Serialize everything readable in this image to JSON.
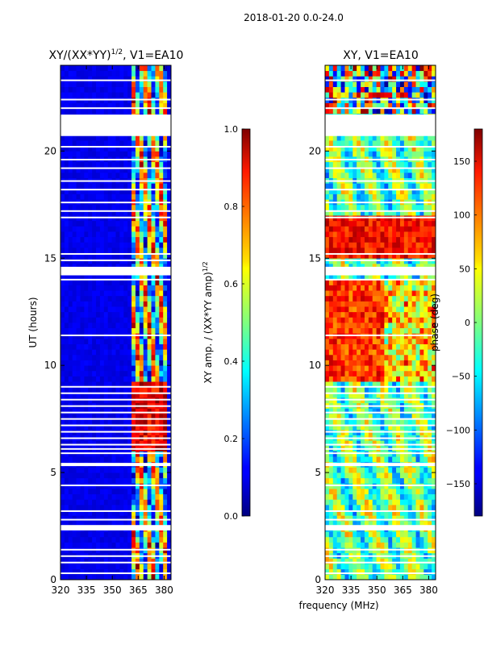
{
  "figure": {
    "suptitle": "2018-01-20 0.0-24.0",
    "shared_xlabel": "frequency (MHz)"
  },
  "chart_data": [
    {
      "type": "heatmap",
      "title": "XY/(XX*YY)",
      "title_exponent": "1/2",
      "title_suffix": ", V1=EA10",
      "xlabel": "",
      "ylabel": "UT (hours)",
      "xlim": [
        320,
        384
      ],
      "ylim": [
        0,
        24
      ],
      "xticks": [
        320,
        335,
        350,
        365,
        380
      ],
      "yticks": [
        0,
        5,
        10,
        15,
        20
      ],
      "colorbar": {
        "label": "XY amp. / (XX*YY amp)",
        "label_exponent": "1/2",
        "range": [
          0.0,
          1.0
        ],
        "ticks": [
          "0.0",
          "0.2",
          "0.4",
          "0.6",
          "0.8",
          "1.0"
        ],
        "colormap": "jet"
      },
      "active_band_mhz": [
        362,
        381
      ],
      "gap_bands_hours": [
        [
          2.3,
          2.55
        ],
        [
          5.3,
          5.45
        ],
        [
          14.2,
          14.6
        ],
        [
          20.7,
          21.7
        ]
      ],
      "flag_line_hours": [
        0.3,
        0.8,
        1.1,
        1.4,
        2.8,
        3.2,
        4.4,
        5.9,
        6.1,
        6.3,
        6.6,
        6.9,
        7.2,
        7.5,
        7.8,
        8.1,
        8.4,
        8.7,
        9.0,
        11.4,
        14.0,
        14.9,
        15.2,
        16.9,
        17.2,
        17.6,
        18.2,
        18.6,
        19.2,
        19.6,
        20.2,
        22.0,
        22.4,
        23.3
      ]
    },
    {
      "type": "heatmap",
      "title": "XY, V1=EA10",
      "xlabel": "frequency (MHz)",
      "ylabel": "",
      "xlim": [
        320,
        384
      ],
      "ylim": [
        0,
        24
      ],
      "xticks": [
        320,
        335,
        350,
        365,
        380
      ],
      "yticks": [
        0,
        5,
        10,
        15,
        20
      ],
      "colorbar": {
        "label": "phase (deg)",
        "range": [
          -180,
          180
        ],
        "ticks": [
          "150",
          "100",
          "50",
          "0",
          "−50",
          "−100",
          "−150"
        ],
        "colormap": "jet"
      },
      "gap_bands_hours": [
        [
          2.3,
          2.55
        ],
        [
          5.3,
          5.45
        ],
        [
          14.2,
          14.6
        ],
        [
          20.7,
          21.7
        ]
      ],
      "flag_line_hours": [
        0.3,
        0.8,
        1.1,
        1.4,
        2.8,
        3.2,
        4.4,
        5.9,
        6.1,
        6.3,
        6.6,
        6.9,
        7.2,
        7.5,
        7.8,
        8.1,
        8.4,
        8.7,
        9.0,
        11.4,
        14.0,
        14.9,
        15.2,
        16.9,
        17.2,
        17.6,
        18.2,
        18.6,
        19.2,
        19.6,
        20.2,
        22.0,
        22.4,
        23.3
      ]
    }
  ]
}
